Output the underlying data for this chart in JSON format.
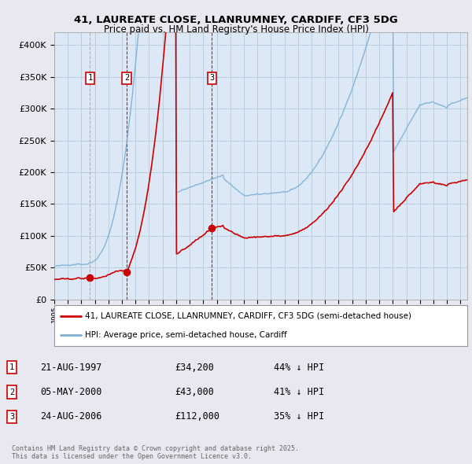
{
  "title1": "41, LAUREATE CLOSE, LLANRUMNEY, CARDIFF, CF3 5DG",
  "title2": "Price paid vs. HM Land Registry's House Price Index (HPI)",
  "legend_property": "41, LAUREATE CLOSE, LLANRUMNEY, CARDIFF, CF3 5DG (semi-detached house)",
  "legend_hpi": "HPI: Average price, semi-detached house, Cardiff",
  "footnote": "Contains HM Land Registry data © Crown copyright and database right 2025.\nThis data is licensed under the Open Government Licence v3.0.",
  "transactions": [
    {
      "num": 1,
      "date": "21-AUG-1997",
      "price": 34200,
      "year": 1997.64,
      "label": "44% ↓ HPI"
    },
    {
      "num": 2,
      "date": "05-MAY-2000",
      "price": 43000,
      "year": 2000.34,
      "label": "41% ↓ HPI"
    },
    {
      "num": 3,
      "date": "24-AUG-2006",
      "price": 112000,
      "year": 2006.64,
      "label": "35% ↓ HPI"
    }
  ],
  "property_color": "#cc0000",
  "hpi_color": "#7ab0d4",
  "background_color": "#e8e8f0",
  "plot_bg_color": "#dce8f5",
  "grid_color": "#b8cfe0",
  "ylim": [
    0,
    420000
  ],
  "xlim_start": 1995.0,
  "xlim_end": 2025.5,
  "yticks": [
    0,
    50000,
    100000,
    150000,
    200000,
    250000,
    300000,
    350000,
    400000
  ],
  "figsize": [
    6.0,
    5.9
  ],
  "dpi": 100
}
